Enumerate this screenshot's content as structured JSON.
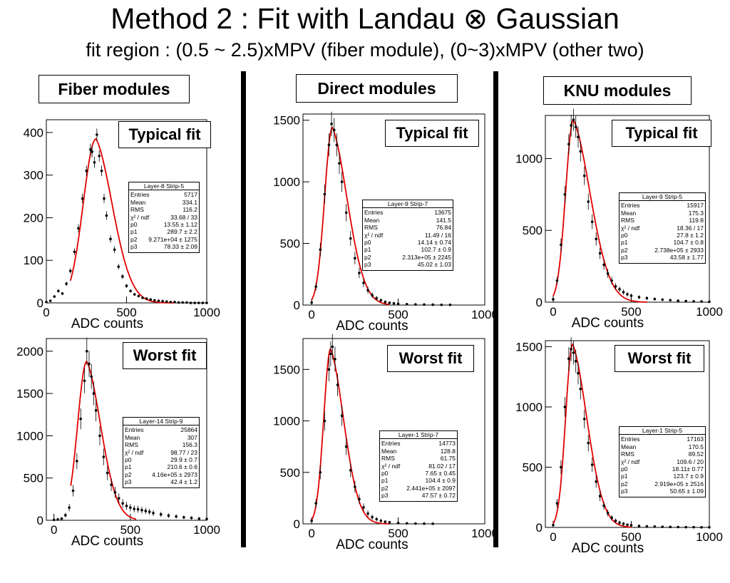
{
  "title": "Method 2 : Fit with Landau ⊗ Gaussian",
  "subtitle": "fit region : (0.5 ~ 2.5)xMPV (fiber module), (0~3)xMPV (other two)",
  "columns": [
    {
      "label": "Fiber modules"
    },
    {
      "label": "Direct modules"
    },
    {
      "label": "KNU modules"
    }
  ],
  "colors": {
    "fit": "#e00000",
    "data": "#000000",
    "frame": "#000000"
  },
  "chart_data": [
    {
      "type": "scatter",
      "fit_type": "line",
      "label": "Typical fit",
      "xlabel": "ADC counts",
      "xlim": [
        0,
        1000
      ],
      "ylim": [
        0,
        430
      ],
      "xticks": [
        0,
        500,
        1000
      ],
      "yticks": [
        0,
        100,
        200,
        300,
        400
      ],
      "x": [
        0,
        25,
        50,
        75,
        100,
        125,
        150,
        175,
        200,
        225,
        250,
        275,
        285,
        300,
        315,
        330,
        345,
        360,
        375,
        400,
        425,
        450,
        475,
        500,
        525,
        550,
        575,
        600,
        625,
        650,
        675,
        700,
        725,
        750,
        775,
        800,
        825,
        850,
        875,
        900,
        925,
        950,
        975,
        1000
      ],
      "y": [
        2,
        5,
        15,
        28,
        22,
        45,
        75,
        120,
        175,
        245,
        310,
        360,
        355,
        330,
        395,
        345,
        310,
        245,
        205,
        150,
        125,
        85,
        62,
        40,
        28,
        20,
        16,
        12,
        10,
        8,
        6,
        5,
        4,
        3,
        2,
        2,
        1,
        1,
        1,
        0,
        0,
        0,
        0,
        0
      ],
      "fit": {
        "mpv": 310,
        "peak": 385,
        "width_left": 80,
        "width_right": 95,
        "range": [
          150,
          800
        ]
      },
      "stats": {
        "title": "Layer-8 Strip-5",
        "rows": [
          {
            "k": "Entries",
            "v": "5717"
          },
          {
            "k": "Mean",
            "v": "334.1"
          },
          {
            "k": "RMS",
            "v": "116.2"
          },
          {
            "k": "χ² / ndf",
            "v": "33.68 / 33"
          },
          {
            "k": "p0",
            "v": "13.55 ± 1.12"
          },
          {
            "k": "p1",
            "v": "289.7 ± 2.2"
          },
          {
            "k": "p2",
            "v": "9.271e+04 ± 1275"
          },
          {
            "k": "p3",
            "v": "78.33 ± 2.09"
          }
        ]
      }
    },
    {
      "type": "scatter",
      "fit_type": "line",
      "label": "Typical fit",
      "xlabel": "ADC counts",
      "xlim": [
        -50,
        1000
      ],
      "ylim": [
        0,
        1550
      ],
      "xticks": [
        0,
        500,
        1000
      ],
      "yticks": [
        0,
        500,
        1000,
        1500
      ],
      "x": [
        0,
        25,
        50,
        75,
        100,
        115,
        130,
        145,
        160,
        175,
        200,
        225,
        250,
        275,
        300,
        325,
        350,
        375,
        400,
        425,
        450,
        475,
        500,
        550,
        600,
        650,
        700,
        750,
        800
      ],
      "y": [
        20,
        150,
        450,
        900,
        1300,
        1470,
        1420,
        1300,
        1150,
        1000,
        750,
        540,
        380,
        260,
        180,
        120,
        80,
        55,
        38,
        25,
        18,
        14,
        10,
        7,
        5,
        4,
        3,
        2,
        2
      ],
      "fit": {
        "mpv": 120,
        "peak": 1440,
        "width_left": 45,
        "width_right": 80,
        "range": [
          0,
          450
        ]
      },
      "stats": {
        "title": "Layer-9 Strip-7",
        "rows": [
          {
            "k": "Entries",
            "v": "13675"
          },
          {
            "k": "Mean",
            "v": "141.5"
          },
          {
            "k": "RMS",
            "v": "76.84"
          },
          {
            "k": "χ² / ndf",
            "v": "11.49 / 16"
          },
          {
            "k": "p0",
            "v": "14.14 ± 0.74"
          },
          {
            "k": "p1",
            "v": "102.7 ± 0.9"
          },
          {
            "k": "p2",
            "v": "2.313e+05 ± 2245"
          },
          {
            "k": "p3",
            "v": "45.02 ± 1.03"
          }
        ]
      }
    },
    {
      "type": "scatter",
      "fit_type": "line",
      "label": "Typical fit",
      "xlabel": "ADC counts",
      "xlim": [
        -50,
        1000
      ],
      "ylim": [
        0,
        1300
      ],
      "xticks": [
        0,
        500,
        1000
      ],
      "yticks": [
        0,
        500,
        1000
      ],
      "x": [
        0,
        25,
        50,
        75,
        100,
        115,
        130,
        145,
        160,
        175,
        200,
        225,
        250,
        275,
        300,
        325,
        350,
        375,
        400,
        425,
        450,
        475,
        500,
        550,
        600,
        650,
        700,
        750,
        800,
        850,
        900,
        950,
        1000
      ],
      "y": [
        20,
        150,
        400,
        750,
        1100,
        1230,
        1270,
        1220,
        1150,
        1050,
        880,
        700,
        560,
        440,
        340,
        260,
        200,
        150,
        110,
        90,
        70,
        55,
        45,
        35,
        28,
        22,
        18,
        14,
        10,
        8,
        6,
        5,
        3
      ],
      "fit": {
        "mpv": 130,
        "peak": 1270,
        "width_left": 50,
        "width_right": 100,
        "range": [
          0,
          600
        ]
      },
      "stats": {
        "title": "Layer-9 Strip-5",
        "rows": [
          {
            "k": "Entries",
            "v": "15917"
          },
          {
            "k": "Mean",
            "v": "175.3"
          },
          {
            "k": "RMS",
            "v": "119.8"
          },
          {
            "k": "χ² / ndf",
            "v": "18.36 / 17"
          },
          {
            "k": "p0",
            "v": "27.8 ± 1.2"
          },
          {
            "k": "p1",
            "v": "104.7 ± 0.8"
          },
          {
            "k": "p2",
            "v": "2.738e+05 ± 2933"
          },
          {
            "k": "p3",
            "v": "43.58 ± 1.77"
          }
        ]
      }
    },
    {
      "type": "scatter",
      "fit_type": "line",
      "label": "Worst fit",
      "xlabel": "ADC counts",
      "xlim": [
        -50,
        1000
      ],
      "ylim": [
        0,
        2150
      ],
      "xticks": [
        0,
        500,
        1000
      ],
      "yticks": [
        0,
        500,
        1000,
        1500,
        2000
      ],
      "x": [
        0,
        25,
        50,
        75,
        100,
        125,
        150,
        175,
        200,
        215,
        230,
        245,
        260,
        275,
        300,
        325,
        350,
        375,
        400,
        425,
        450,
        475,
        500,
        525,
        550,
        575,
        600,
        625,
        650,
        700,
        750,
        800,
        850,
        900,
        950,
        1000
      ],
      "y": [
        5,
        10,
        20,
        60,
        150,
        350,
        700,
        1200,
        1650,
        2000,
        1850,
        1700,
        1500,
        1300,
        1000,
        750,
        560,
        420,
        330,
        260,
        200,
        170,
        150,
        135,
        130,
        120,
        110,
        100,
        85,
        70,
        55,
        45,
        35,
        28,
        20,
        15
      ],
      "fit": {
        "mpv": 215,
        "peak": 1880,
        "width_left": 60,
        "width_right": 85,
        "range": [
          110,
          540
        ]
      },
      "stats": {
        "title": "Layer-14 Strip-9",
        "rows": [
          {
            "k": "Entries",
            "v": "25864"
          },
          {
            "k": "Mean",
            "v": "307"
          },
          {
            "k": "RMS",
            "v": "156.3"
          },
          {
            "k": "χ² / ndf",
            "v": "98.77 / 23"
          },
          {
            "k": "p0",
            "v": "29.9 ± 0.7"
          },
          {
            "k": "p1",
            "v": "210.6 ± 0.6"
          },
          {
            "k": "p2",
            "v": "4.16e+05 ± 2973"
          },
          {
            "k": "p3",
            "v": "42.4 ± 1.2"
          }
        ]
      }
    },
    {
      "type": "scatter",
      "fit_type": "line",
      "label": "Worst fit",
      "xlabel": "ADC counts",
      "xlim": [
        -50,
        1000
      ],
      "ylim": [
        0,
        1800
      ],
      "xticks": [
        0,
        500,
        1000
      ],
      "yticks": [
        0,
        500,
        1000,
        1500
      ],
      "x": [
        0,
        25,
        50,
        75,
        100,
        110,
        120,
        135,
        150,
        175,
        200,
        225,
        250,
        275,
        300,
        325,
        350,
        375,
        400,
        425,
        450,
        500,
        550,
        600,
        650,
        700
      ],
      "y": [
        30,
        200,
        500,
        1000,
        1500,
        1650,
        1720,
        1600,
        1350,
        1050,
        750,
        520,
        360,
        240,
        160,
        100,
        65,
        45,
        30,
        20,
        15,
        8,
        5,
        3,
        2,
        1
      ],
      "fit": {
        "mpv": 110,
        "peak": 1700,
        "width_left": 40,
        "width_right": 70,
        "range": [
          0,
          450
        ]
      },
      "stats": {
        "title": "Layer-1 Strip-7",
        "rows": [
          {
            "k": "Entries",
            "v": "14773"
          },
          {
            "k": "Mean",
            "v": "128.8"
          },
          {
            "k": "RMS",
            "v": "61.75"
          },
          {
            "k": "χ² / ndf",
            "v": "81.02 / 17"
          },
          {
            "k": "p0",
            "v": "7.65 ± 0.45"
          },
          {
            "k": "p1",
            "v": "104.4 ± 0.9"
          },
          {
            "k": "p2",
            "v": "2.441e+05 ± 2097"
          },
          {
            "k": "p3",
            "v": "47.57 ± 0.72"
          }
        ]
      }
    },
    {
      "type": "scatter",
      "fit_type": "line",
      "label": "Worst fit",
      "xlabel": "ADC counts",
      "xlim": [
        -50,
        1000
      ],
      "ylim": [
        0,
        1550
      ],
      "xticks": [
        0,
        500,
        1000
      ],
      "yticks": [
        0,
        500,
        1000,
        1500
      ],
      "x": [
        0,
        25,
        50,
        75,
        100,
        115,
        130,
        145,
        160,
        175,
        200,
        225,
        250,
        275,
        300,
        325,
        350,
        375,
        400,
        425,
        450,
        475,
        500,
        550,
        600,
        650,
        700,
        750,
        800,
        850,
        900,
        950,
        1000
      ],
      "y": [
        20,
        200,
        500,
        1000,
        1400,
        1480,
        1450,
        1380,
        1280,
        1150,
        900,
        700,
        520,
        380,
        260,
        180,
        120,
        80,
        55,
        40,
        30,
        22,
        18,
        12,
        9,
        7,
        5,
        4,
        3,
        2,
        2,
        1,
        1
      ],
      "fit": {
        "mpv": 125,
        "peak": 1520,
        "width_left": 45,
        "width_right": 85,
        "range": [
          0,
          500
        ]
      },
      "stats": {
        "title": "Layer-1 Strip-5",
        "rows": [
          {
            "k": "Entries",
            "v": "17163"
          },
          {
            "k": "Mean",
            "v": "170.5"
          },
          {
            "k": "RMS",
            "v": "89.52"
          },
          {
            "k": "χ² / ndf",
            "v": "109.6 / 20"
          },
          {
            "k": "p0",
            "v": "18.11± 0.77"
          },
          {
            "k": "p1",
            "v": "123.7 ± 0.9"
          },
          {
            "k": "p2",
            "v": "2.919e+05 ± 2516"
          },
          {
            "k": "p3",
            "v": "50.65 ± 1.09"
          }
        ]
      }
    }
  ]
}
